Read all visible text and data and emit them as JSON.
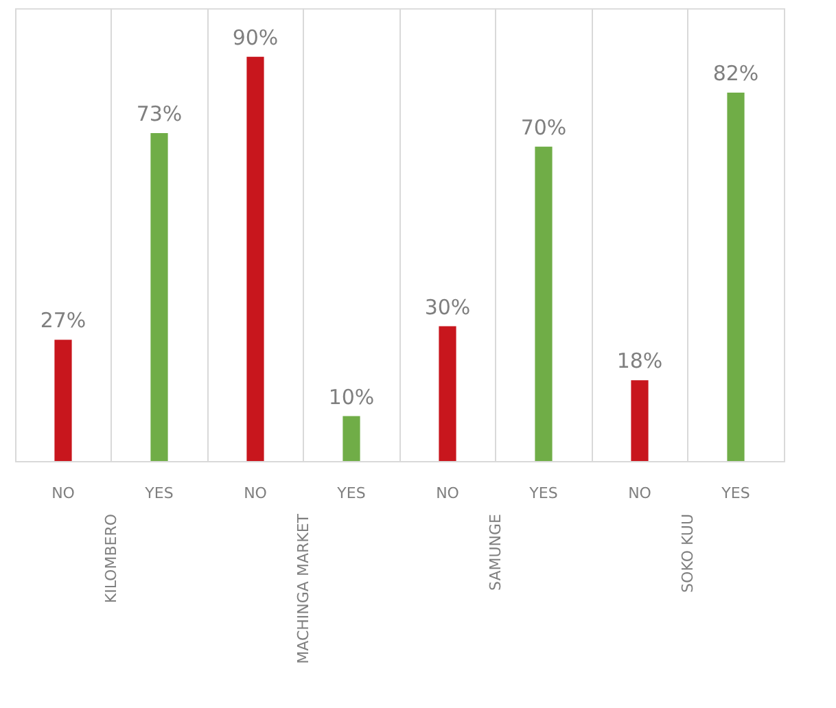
{
  "chart_data": {
    "type": "bar",
    "categories": [
      "KILOMBERO",
      "MACHINGA MARKET",
      "SAMUNGE",
      "SOKO KUU"
    ],
    "series": [
      {
        "name": "NO",
        "color": "#c8161d",
        "values": [
          27,
          90,
          30,
          18
        ],
        "value_labels": [
          "27%",
          "90%",
          "30%",
          "18%"
        ]
      },
      {
        "name": "YES",
        "color": "#70ad47",
        "values": [
          73,
          10,
          70,
          82
        ],
        "value_labels": [
          "73%",
          "10%",
          "70%",
          "82%"
        ]
      }
    ],
    "grid": "x",
    "legend": false
  }
}
